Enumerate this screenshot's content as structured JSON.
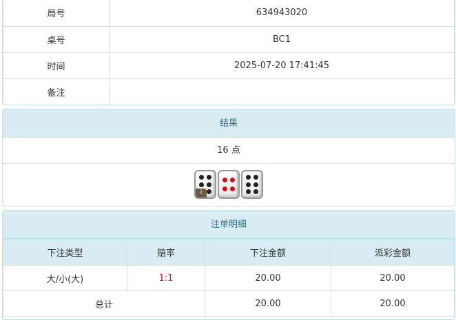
{
  "info": {
    "rows": [
      {
        "label": "局号",
        "value": "634943020"
      },
      {
        "label": "桌号",
        "value": "BC1"
      },
      {
        "label": "时间",
        "value": "2025-07-20 17:41:45"
      },
      {
        "label": "备注",
        "value": ""
      }
    ]
  },
  "result": {
    "title": "结果",
    "points": "16 点",
    "dice": [
      6,
      4,
      6
    ],
    "info_badge": "i"
  },
  "bets": {
    "title": "注单明细",
    "columns": [
      "下注类型",
      "赔率",
      "下注金额",
      "派彩金额"
    ],
    "rows": [
      {
        "type": "大/小(大)",
        "odds": "1:1",
        "amount": "20.00",
        "payout": "20.00"
      }
    ],
    "total": {
      "label": "总计",
      "amount": "20.00",
      "payout": "20.00"
    },
    "odds_color": "#e0102a"
  }
}
